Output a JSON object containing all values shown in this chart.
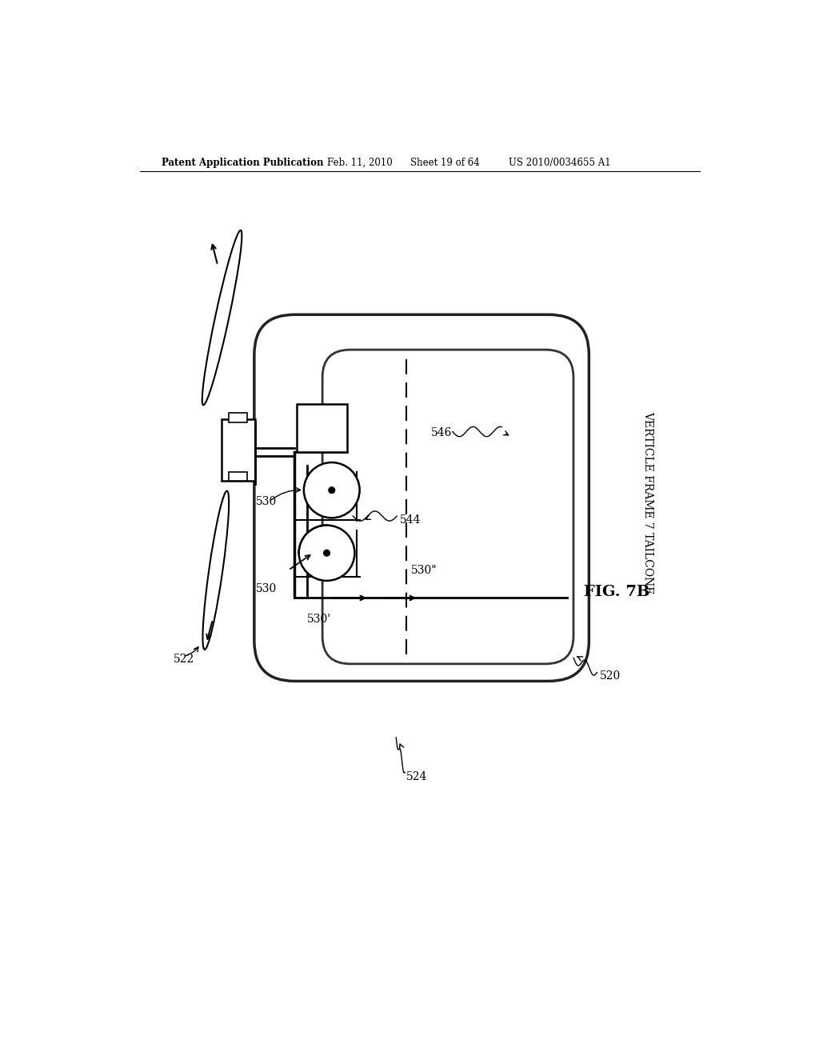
{
  "bg_color": "#ffffff",
  "header_text": "Patent Application Publication",
  "header_date": "Feb. 11, 2010",
  "header_sheet": "Sheet 19 of 64",
  "header_patent": "US 2010/0034655 A1",
  "fig_label": "FIG. 7B",
  "vertical_frame_label": "VERTICLE FRAME 7 TAILCONE",
  "label_520": "520",
  "label_522": "522",
  "label_524": "524",
  "label_530": "530",
  "label_530p": "530'",
  "label_530pp": "530\"",
  "label_544": "544",
  "label_546": "546"
}
